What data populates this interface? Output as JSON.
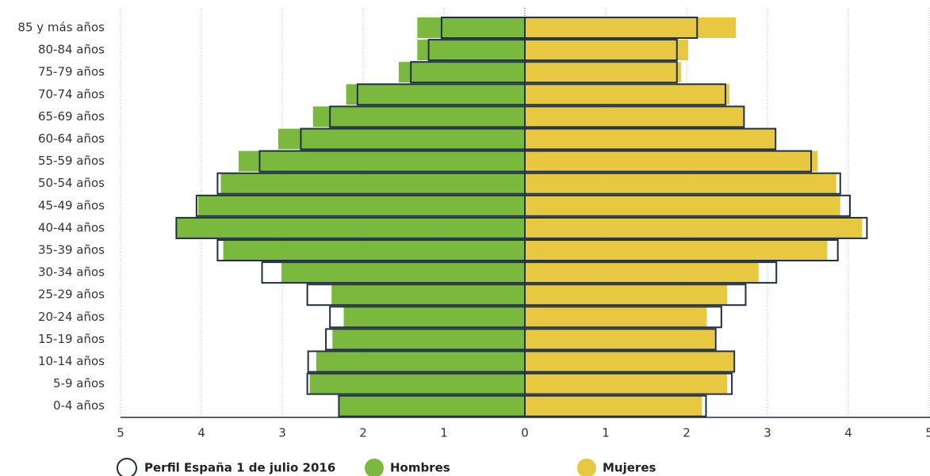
{
  "chart_data": {
    "type": "pyramid",
    "categories": [
      "85 y más años",
      "80-84 años",
      "75-79 años",
      "70-74 años",
      "65-69 años",
      "60-64 años",
      "55-59 años",
      "50-54 años",
      "45-49 años",
      "40-44 años",
      "35-39 años",
      "30-34 años",
      "25-29 años",
      "20-24 años",
      "15-19 años",
      "10-14 años",
      "5-9 años",
      "0-4 años"
    ],
    "series": [
      {
        "name": "Hombres",
        "color": "#7ab83e",
        "values": [
          -1.33,
          -1.33,
          -1.56,
          -2.21,
          -2.62,
          -3.05,
          -3.54,
          -3.76,
          -4.04,
          -4.31,
          -3.73,
          -3.01,
          -2.39,
          -2.24,
          -2.38,
          -2.58,
          -2.66,
          -2.3
        ]
      },
      {
        "name": "Mujeres",
        "color": "#e8c840",
        "values": [
          2.61,
          2.02,
          1.93,
          2.53,
          2.71,
          3.1,
          3.62,
          3.85,
          3.9,
          4.17,
          3.74,
          2.89,
          2.5,
          2.25,
          2.35,
          2.59,
          2.5,
          2.19
        ]
      }
    ],
    "profile": {
      "name": "Perfil España 1 de julio 2016",
      "color": "#1f3044",
      "hombres": [
        -1.03,
        -1.19,
        -1.41,
        -2.07,
        -2.41,
        -2.77,
        -3.28,
        -3.8,
        -4.06,
        -4.31,
        -3.8,
        -3.25,
        -2.69,
        -2.41,
        -2.46,
        -2.68,
        -2.69,
        -2.3
      ],
      "mujeres": [
        2.13,
        1.88,
        1.88,
        2.48,
        2.71,
        3.1,
        3.54,
        3.9,
        4.02,
        4.23,
        3.87,
        3.11,
        2.73,
        2.43,
        2.36,
        2.59,
        2.56,
        2.24
      ]
    },
    "xlim": [
      -5,
      5
    ],
    "xticks": [
      {
        "value": -5,
        "label": "5"
      },
      {
        "value": -4,
        "label": "4"
      },
      {
        "value": -3,
        "label": "3"
      },
      {
        "value": -2,
        "label": "2"
      },
      {
        "value": -1,
        "label": "1"
      },
      0,
      1,
      2,
      3,
      4,
      5
    ],
    "grid": true
  }
}
